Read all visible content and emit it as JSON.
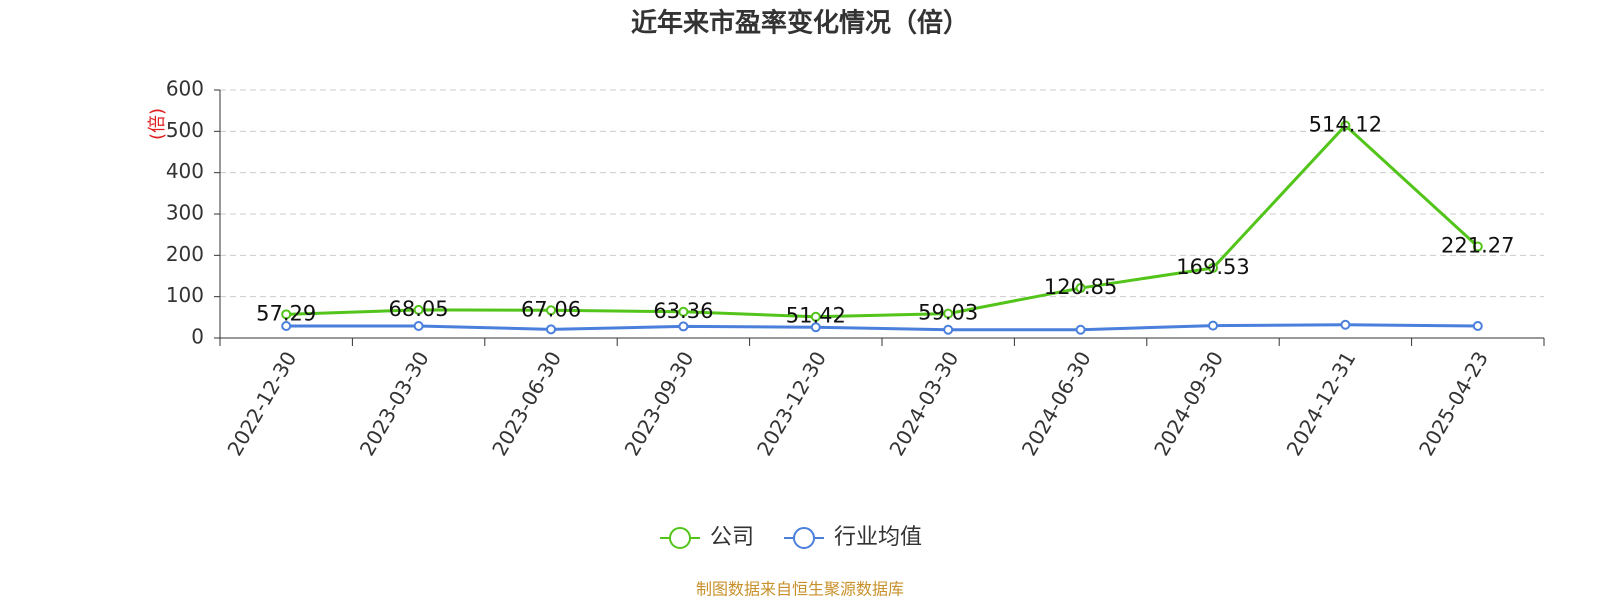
{
  "chart_data": {
    "type": "line",
    "title": "近年来市盈率变化情况（倍）",
    "y_label": "(倍)",
    "source": "制图数据来自恒生聚源数据库",
    "categories": [
      "2022-12-30",
      "2023-03-30",
      "2023-06-30",
      "2023-09-30",
      "2023-12-30",
      "2024-03-30",
      "2024-06-30",
      "2024-09-30",
      "2024-12-31",
      "2025-04-23"
    ],
    "series": [
      {
        "name": "公司",
        "color": "#52c41a",
        "values": [
          57.29,
          68.05,
          67.06,
          63.36,
          51.42,
          59.03,
          120.85,
          169.53,
          514.12,
          221.27
        ],
        "labels": true
      },
      {
        "name": "行业均值",
        "color": "#4a7fdc",
        "values": [
          29,
          29,
          21,
          28,
          26,
          20,
          20,
          30,
          32,
          29
        ],
        "labels": false
      }
    ],
    "ylim": [
      0,
      600
    ],
    "yticks": [
      0,
      100,
      200,
      300,
      400,
      500,
      600
    ],
    "grid": true
  }
}
